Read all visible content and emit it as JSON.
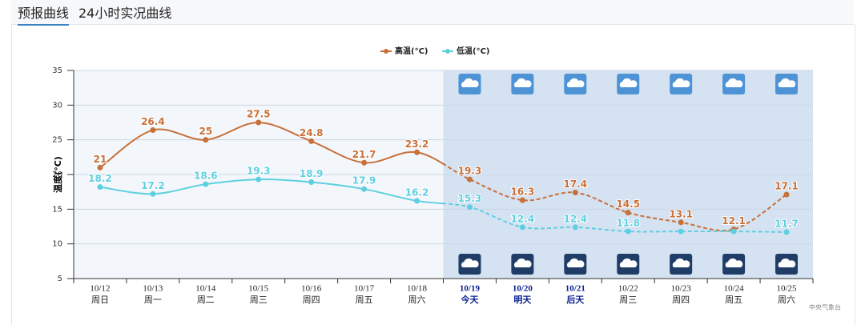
{
  "tabs": [
    "预报曲线",
    "24小时实况曲线"
  ],
  "chart_data": {
    "type": "line",
    "y_label": "温度(°C)",
    "categories": [
      "10/12",
      "10/13",
      "10/14",
      "10/15",
      "10/16",
      "10/17",
      "10/18",
      "10/19",
      "10/20",
      "10/21",
      "10/22",
      "10/23",
      "10/24",
      "10/25"
    ],
    "weekdays": [
      "周日",
      "周一",
      "周二",
      "周三",
      "周四",
      "周五",
      "周六",
      "今天",
      "明天",
      "后天",
      "周三",
      "周四",
      "周五",
      "周六"
    ],
    "highlight_days": [
      "10/19",
      "10/20",
      "10/21"
    ],
    "forecast_start": "10/19",
    "series": [
      {
        "name": "高温(°C)",
        "color": "#c8703a",
        "values": [
          21,
          26.4,
          25,
          27.5,
          24.8,
          21.7,
          23.2,
          19.3,
          16.3,
          17.4,
          14.5,
          13.1,
          12.1,
          17.1
        ]
      },
      {
        "name": "低温(°C)",
        "color": "#5fcfe0",
        "values": [
          18.2,
          17.2,
          18.6,
          19.3,
          18.9,
          17.9,
          16.2,
          15.3,
          12.4,
          12.4,
          11.8,
          11.8,
          11.8,
          11.7
        ],
        "value_labels": [
          "18.2",
          "17.2",
          "18.6",
          "19.3",
          "18.9",
          "17.9",
          "16.2",
          "15.3",
          "12.4",
          "12.4",
          "11.8",
          null,
          null,
          "11.7"
        ]
      }
    ],
    "ylim": [
      5,
      35
    ],
    "yticks": [
      5,
      10,
      15,
      20,
      25,
      30,
      35
    ],
    "grid": true,
    "legend": "top",
    "source": "中央气象台"
  }
}
